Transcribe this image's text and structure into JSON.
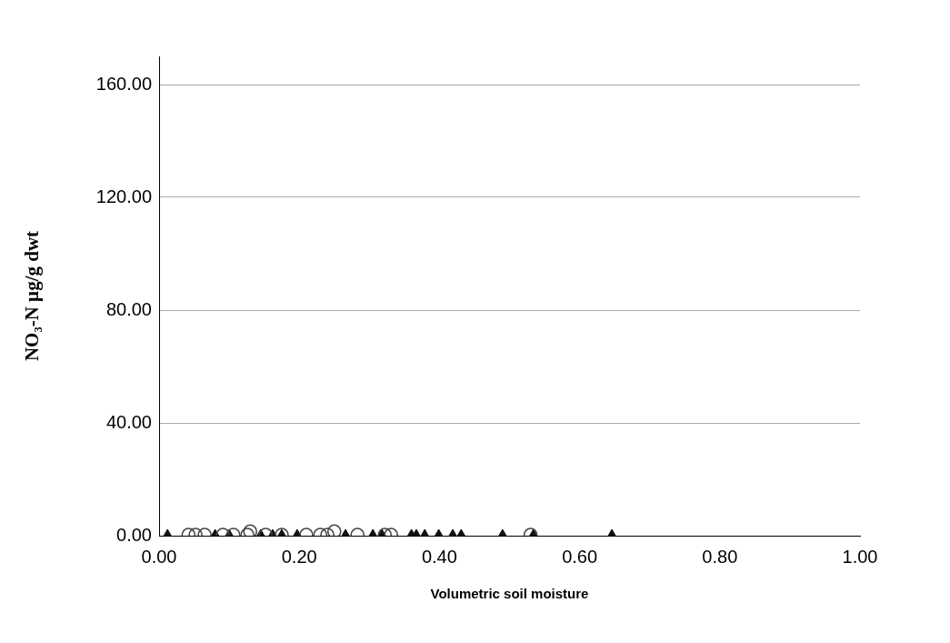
{
  "chart_data": {
    "type": "scatter",
    "xlabel": "Volumetric soil moisture",
    "ylabel": "NO₃-N µg/g dwt",
    "xlim": [
      0,
      1
    ],
    "ylim": [
      0,
      170
    ],
    "xticks": [
      {
        "value": 0,
        "label": "0.00"
      },
      {
        "value": 0.2,
        "label": "0.20"
      },
      {
        "value": 0.4,
        "label": "0.40"
      },
      {
        "value": 0.6,
        "label": "0.60"
      },
      {
        "value": 0.8,
        "label": "0.80"
      },
      {
        "value": 1,
        "label": "1.00"
      }
    ],
    "yticks": [
      {
        "value": 0,
        "label": "0.00"
      },
      {
        "value": 40,
        "label": "40.00"
      },
      {
        "value": 80,
        "label": "80.00"
      },
      {
        "value": 120,
        "label": "120.00"
      },
      {
        "value": 160,
        "label": "160.00"
      }
    ],
    "grid": "y",
    "legend": false,
    "series": [
      {
        "color": "#444444",
        "marker": "circle",
        "x": [
          0.042,
          0.052,
          0.065,
          0.091,
          0.106,
          0.126,
          0.13,
          0.152,
          0.175,
          0.21,
          0.23,
          0.24,
          0.25,
          0.283,
          0.322,
          0.331,
          0.53
        ],
        "values": [
          0.3,
          0.3,
          0.3,
          0.3,
          0.3,
          0.3,
          1.5,
          0.3,
          0.3,
          0.3,
          0.3,
          0.3,
          1.5,
          0.3,
          0.3,
          0.3,
          0.3
        ]
      },
      {
        "color": "#111111",
        "marker": "triangle",
        "x": [
          0.012,
          0.08,
          0.1,
          0.145,
          0.162,
          0.175,
          0.197,
          0.266,
          0.305,
          0.318,
          0.36,
          0.367,
          0.379,
          0.399,
          0.419,
          0.431,
          0.49,
          0.534,
          0.646
        ],
        "values": [
          0,
          0,
          0,
          0,
          0,
          0,
          0,
          0,
          0,
          0,
          0,
          0,
          0,
          0,
          0,
          0,
          0,
          0,
          0
        ]
      }
    ]
  }
}
